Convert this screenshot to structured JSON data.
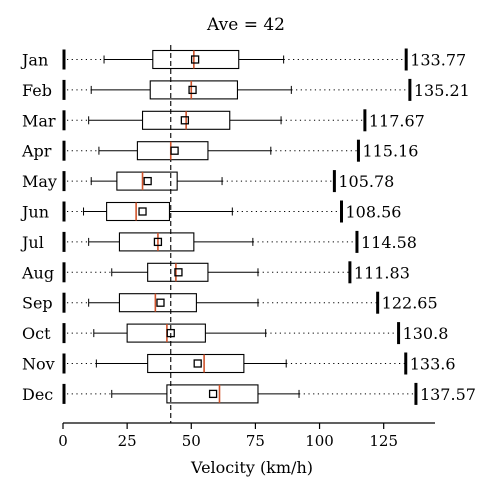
{
  "chart_data": {
    "type": "boxplot",
    "title": "Ave = 42",
    "xlabel": "Velocity (km/h)",
    "xlim": [
      0,
      145
    ],
    "xticks": [
      0,
      25,
      50,
      75,
      100,
      125
    ],
    "reference_line": 42,
    "grid": false,
    "categories": [
      "Jan",
      "Feb",
      "Mar",
      "Apr",
      "May",
      "Jun",
      "Jul",
      "Aug",
      "Sep",
      "Oct",
      "Nov",
      "Dec"
    ],
    "boxes": [
      {
        "label": "Jan",
        "whisker_low": 16,
        "q1": 35,
        "median": 51,
        "mean": 51.5,
        "q3": 68.5,
        "whisker_high": 86,
        "max": 133.77,
        "max_label": "133.77"
      },
      {
        "label": "Feb",
        "whisker_low": 11,
        "q1": 34,
        "median": 50,
        "mean": 50.5,
        "q3": 68,
        "whisker_high": 89,
        "max": 135.21,
        "max_label": "135.21"
      },
      {
        "label": "Mar",
        "whisker_low": 10,
        "q1": 31,
        "median": 48,
        "mean": 47.5,
        "q3": 65,
        "whisker_high": 85,
        "max": 117.67,
        "max_label": "117.67"
      },
      {
        "label": "Apr",
        "whisker_low": 14,
        "q1": 29,
        "median": 42,
        "mean": 43.5,
        "q3": 56.5,
        "whisker_high": 81,
        "max": 115.16,
        "max_label": "115.16"
      },
      {
        "label": "May",
        "whisker_low": 11,
        "q1": 21,
        "median": 31,
        "mean": 33,
        "q3": 44.5,
        "whisker_high": 62,
        "max": 105.78,
        "max_label": "105.78"
      },
      {
        "label": "Jun",
        "whisker_low": 8,
        "q1": 17,
        "median": 28.5,
        "mean": 31,
        "q3": 41.5,
        "whisker_high": 66,
        "max": 108.56,
        "max_label": "108.56"
      },
      {
        "label": "Jul",
        "whisker_low": 10,
        "q1": 22,
        "median": 37,
        "mean": 37,
        "q3": 51,
        "whisker_high": 74,
        "max": 114.58,
        "max_label": "114.58"
      },
      {
        "label": "Aug",
        "whisker_low": 19,
        "q1": 33,
        "median": 44,
        "mean": 45,
        "q3": 56.5,
        "whisker_high": 76,
        "max": 111.83,
        "max_label": "111.83"
      },
      {
        "label": "Sep",
        "whisker_low": 10,
        "q1": 22,
        "median": 36,
        "mean": 38,
        "q3": 52,
        "whisker_high": 76,
        "max": 122.65,
        "max_label": "122.65"
      },
      {
        "label": "Oct",
        "whisker_low": 12,
        "q1": 25,
        "median": 40.5,
        "mean": 42,
        "q3": 55.5,
        "whisker_high": 79,
        "max": 130.8,
        "max_label": "130.8"
      },
      {
        "label": "Nov",
        "whisker_low": 13,
        "q1": 33,
        "median": 55,
        "mean": 52.5,
        "q3": 70.5,
        "whisker_high": 87,
        "max": 133.6,
        "max_label": "133.6"
      },
      {
        "label": "Dec",
        "whisker_low": 19,
        "q1": 40.5,
        "median": 61,
        "mean": 58.5,
        "q3": 76,
        "whisker_high": 92,
        "max": 137.57,
        "max_label": "137.57"
      }
    ],
    "colors": {
      "box": "#000000",
      "median": "#d0532b",
      "mean_marker": "#000000",
      "reference": "#000000"
    }
  }
}
